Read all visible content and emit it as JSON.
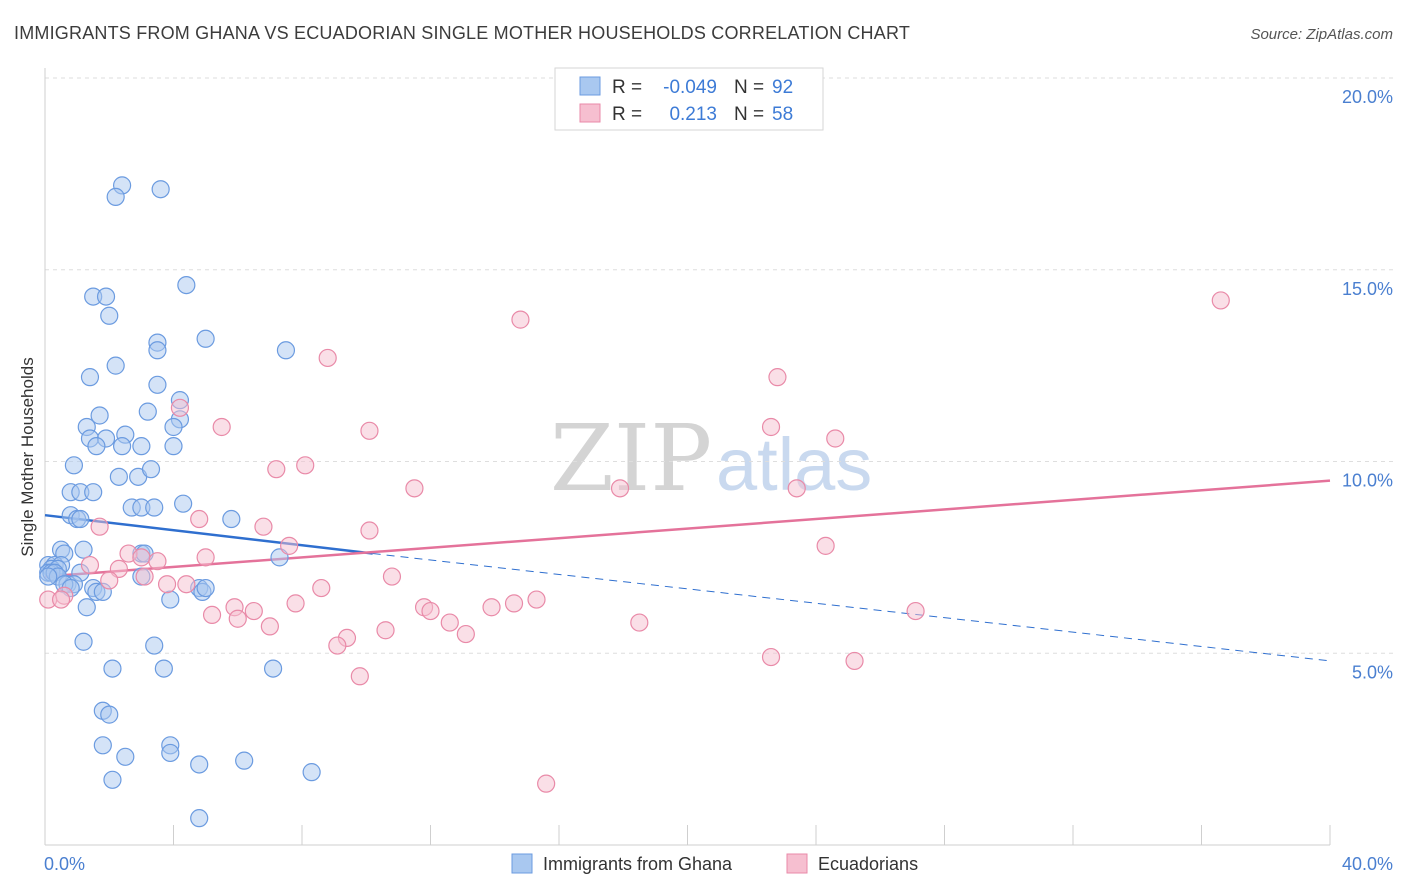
{
  "title": "IMMIGRANTS FROM GHANA VS ECUADORIAN SINGLE MOTHER HOUSEHOLDS CORRELATION CHART",
  "source": "Source: ZipAtlas.com",
  "watermark": {
    "zip": "ZIP",
    "atlas": "atlas"
  },
  "legend": {
    "rows": [
      {
        "r_label": "R =",
        "r_value": "-0.049",
        "n_label": "N =",
        "n_value": "92",
        "color": "#a9c8f0",
        "stroke": "#6b9be0"
      },
      {
        "r_label": "R =",
        "r_value": "0.213",
        "n_label": "N =",
        "n_value": "58",
        "color": "#f6bfd0",
        "stroke": "#e98aa8"
      }
    ]
  },
  "bottom_legend": [
    {
      "label": "Immigrants from Ghana",
      "color": "#a9c8f0",
      "stroke": "#6b9be0"
    },
    {
      "label": "Ecuadorians",
      "color": "#f6bfd0",
      "stroke": "#e98aa8"
    }
  ],
  "chart_data": {
    "type": "scatter",
    "title": "IMMIGRANTS FROM GHANA VS ECUADORIAN SINGLE MOTHER HOUSEHOLDS CORRELATION CHART",
    "xlabel": "",
    "ylabel": "Single Mother Households",
    "xlim": [
      0,
      40
    ],
    "ylim": [
      0,
      20
    ],
    "x_tick_labels": [
      "0.0%",
      "40.0%"
    ],
    "y_ticks": [
      5,
      10,
      15,
      20
    ],
    "y_tick_labels": [
      "5.0%",
      "10.0%",
      "15.0%",
      "20.0%"
    ],
    "grid": true,
    "legend_position": "top-center",
    "series": [
      {
        "name": "Immigrants from Ghana",
        "color": "#a9c8f0",
        "stroke": "#6b9be0",
        "line_color": "#2f6fcf",
        "trend": {
          "x1": 0,
          "y1": 8.6,
          "x2": 10.2,
          "y2": 7.6,
          "dash_x2": 40,
          "dash_y2": 4.8
        },
        "points": [
          [
            2.4,
            17.2
          ],
          [
            2.2,
            16.9
          ],
          [
            3.6,
            17.1
          ],
          [
            1.5,
            14.3
          ],
          [
            1.9,
            14.3
          ],
          [
            4.4,
            14.6
          ],
          [
            2.0,
            13.8
          ],
          [
            3.5,
            13.1
          ],
          [
            5.0,
            13.2
          ],
          [
            3.5,
            12.9
          ],
          [
            7.5,
            12.9
          ],
          [
            2.2,
            12.5
          ],
          [
            1.4,
            12.2
          ],
          [
            3.5,
            12.0
          ],
          [
            1.7,
            11.2
          ],
          [
            3.2,
            11.3
          ],
          [
            4.2,
            11.6
          ],
          [
            4.2,
            11.1
          ],
          [
            4.0,
            10.9
          ],
          [
            1.3,
            10.9
          ],
          [
            1.4,
            10.6
          ],
          [
            1.9,
            10.6
          ],
          [
            2.5,
            10.7
          ],
          [
            1.6,
            10.4
          ],
          [
            3.0,
            10.4
          ],
          [
            2.4,
            10.4
          ],
          [
            4.0,
            10.4
          ],
          [
            0.9,
            9.9
          ],
          [
            2.3,
            9.6
          ],
          [
            2.9,
            9.6
          ],
          [
            3.3,
            9.8
          ],
          [
            0.8,
            9.2
          ],
          [
            1.1,
            9.2
          ],
          [
            1.5,
            9.2
          ],
          [
            4.3,
            8.9
          ],
          [
            2.7,
            8.8
          ],
          [
            3.0,
            8.8
          ],
          [
            3.4,
            8.8
          ],
          [
            0.8,
            8.6
          ],
          [
            1.0,
            8.5
          ],
          [
            1.1,
            8.5
          ],
          [
            5.8,
            8.5
          ],
          [
            0.5,
            7.7
          ],
          [
            0.6,
            7.6
          ],
          [
            1.2,
            7.7
          ],
          [
            3.0,
            7.6
          ],
          [
            3.1,
            7.6
          ],
          [
            7.3,
            7.5
          ],
          [
            0.1,
            7.3
          ],
          [
            0.3,
            7.3
          ],
          [
            0.5,
            7.3
          ],
          [
            0.2,
            7.2
          ],
          [
            0.4,
            7.2
          ],
          [
            0.1,
            7.1
          ],
          [
            0.2,
            7.1
          ],
          [
            0.3,
            7.1
          ],
          [
            0.4,
            7.0
          ],
          [
            0.1,
            7.0
          ],
          [
            1.1,
            7.1
          ],
          [
            3.0,
            7.0
          ],
          [
            0.7,
            6.8
          ],
          [
            0.9,
            6.8
          ],
          [
            0.6,
            6.8
          ],
          [
            0.8,
            6.7
          ],
          [
            1.5,
            6.7
          ],
          [
            1.6,
            6.6
          ],
          [
            1.8,
            6.6
          ],
          [
            4.8,
            6.7
          ],
          [
            4.9,
            6.6
          ],
          [
            5.0,
            6.7
          ],
          [
            1.3,
            6.2
          ],
          [
            3.9,
            6.4
          ],
          [
            1.2,
            5.3
          ],
          [
            3.4,
            5.2
          ],
          [
            2.1,
            4.6
          ],
          [
            3.7,
            4.6
          ],
          [
            7.1,
            4.6
          ],
          [
            1.8,
            3.5
          ],
          [
            2.0,
            3.4
          ],
          [
            1.8,
            2.6
          ],
          [
            3.9,
            2.6
          ],
          [
            3.9,
            2.4
          ],
          [
            2.5,
            2.3
          ],
          [
            4.8,
            2.1
          ],
          [
            6.2,
            2.2
          ],
          [
            8.3,
            1.9
          ],
          [
            2.1,
            1.7
          ],
          [
            4.8,
            0.7
          ]
        ]
      },
      {
        "name": "Ecuadorians",
        "color": "#f6bfd0",
        "stroke": "#e98aa8",
        "line_color": "#e4729a",
        "trend": {
          "x1": 0,
          "y1": 7.0,
          "x2": 40,
          "y2": 9.5
        },
        "points": [
          [
            36.6,
            14.2
          ],
          [
            14.8,
            13.7
          ],
          [
            8.8,
            12.7
          ],
          [
            22.8,
            12.2
          ],
          [
            4.2,
            11.4
          ],
          [
            5.5,
            10.9
          ],
          [
            10.1,
            10.8
          ],
          [
            22.6,
            10.9
          ],
          [
            24.6,
            10.6
          ],
          [
            8.1,
            9.9
          ],
          [
            7.2,
            9.8
          ],
          [
            11.5,
            9.3
          ],
          [
            17.9,
            9.3
          ],
          [
            23.4,
            9.3
          ],
          [
            4.8,
            8.5
          ],
          [
            6.8,
            8.3
          ],
          [
            10.1,
            8.2
          ],
          [
            1.7,
            8.3
          ],
          [
            24.3,
            7.8
          ],
          [
            7.6,
            7.8
          ],
          [
            2.6,
            7.6
          ],
          [
            3.0,
            7.5
          ],
          [
            5.0,
            7.5
          ],
          [
            3.5,
            7.4
          ],
          [
            1.4,
            7.3
          ],
          [
            2.3,
            7.2
          ],
          [
            3.1,
            7.0
          ],
          [
            10.8,
            7.0
          ],
          [
            2.0,
            6.9
          ],
          [
            4.4,
            6.8
          ],
          [
            3.8,
            6.8
          ],
          [
            8.6,
            6.7
          ],
          [
            0.6,
            6.5
          ],
          [
            0.1,
            6.4
          ],
          [
            0.5,
            6.4
          ],
          [
            7.8,
            6.3
          ],
          [
            11.8,
            6.2
          ],
          [
            14.6,
            6.3
          ],
          [
            15.3,
            6.4
          ],
          [
            5.9,
            6.2
          ],
          [
            6.5,
            6.1
          ],
          [
            12.0,
            6.1
          ],
          [
            13.9,
            6.2
          ],
          [
            5.2,
            6.0
          ],
          [
            6.0,
            5.9
          ],
          [
            27.1,
            6.1
          ],
          [
            7.0,
            5.7
          ],
          [
            12.6,
            5.8
          ],
          [
            18.5,
            5.8
          ],
          [
            10.6,
            5.6
          ],
          [
            13.1,
            5.5
          ],
          [
            9.4,
            5.4
          ],
          [
            9.1,
            5.2
          ],
          [
            22.6,
            4.9
          ],
          [
            25.2,
            4.8
          ],
          [
            9.8,
            4.4
          ],
          [
            15.6,
            1.6
          ]
        ]
      }
    ]
  }
}
